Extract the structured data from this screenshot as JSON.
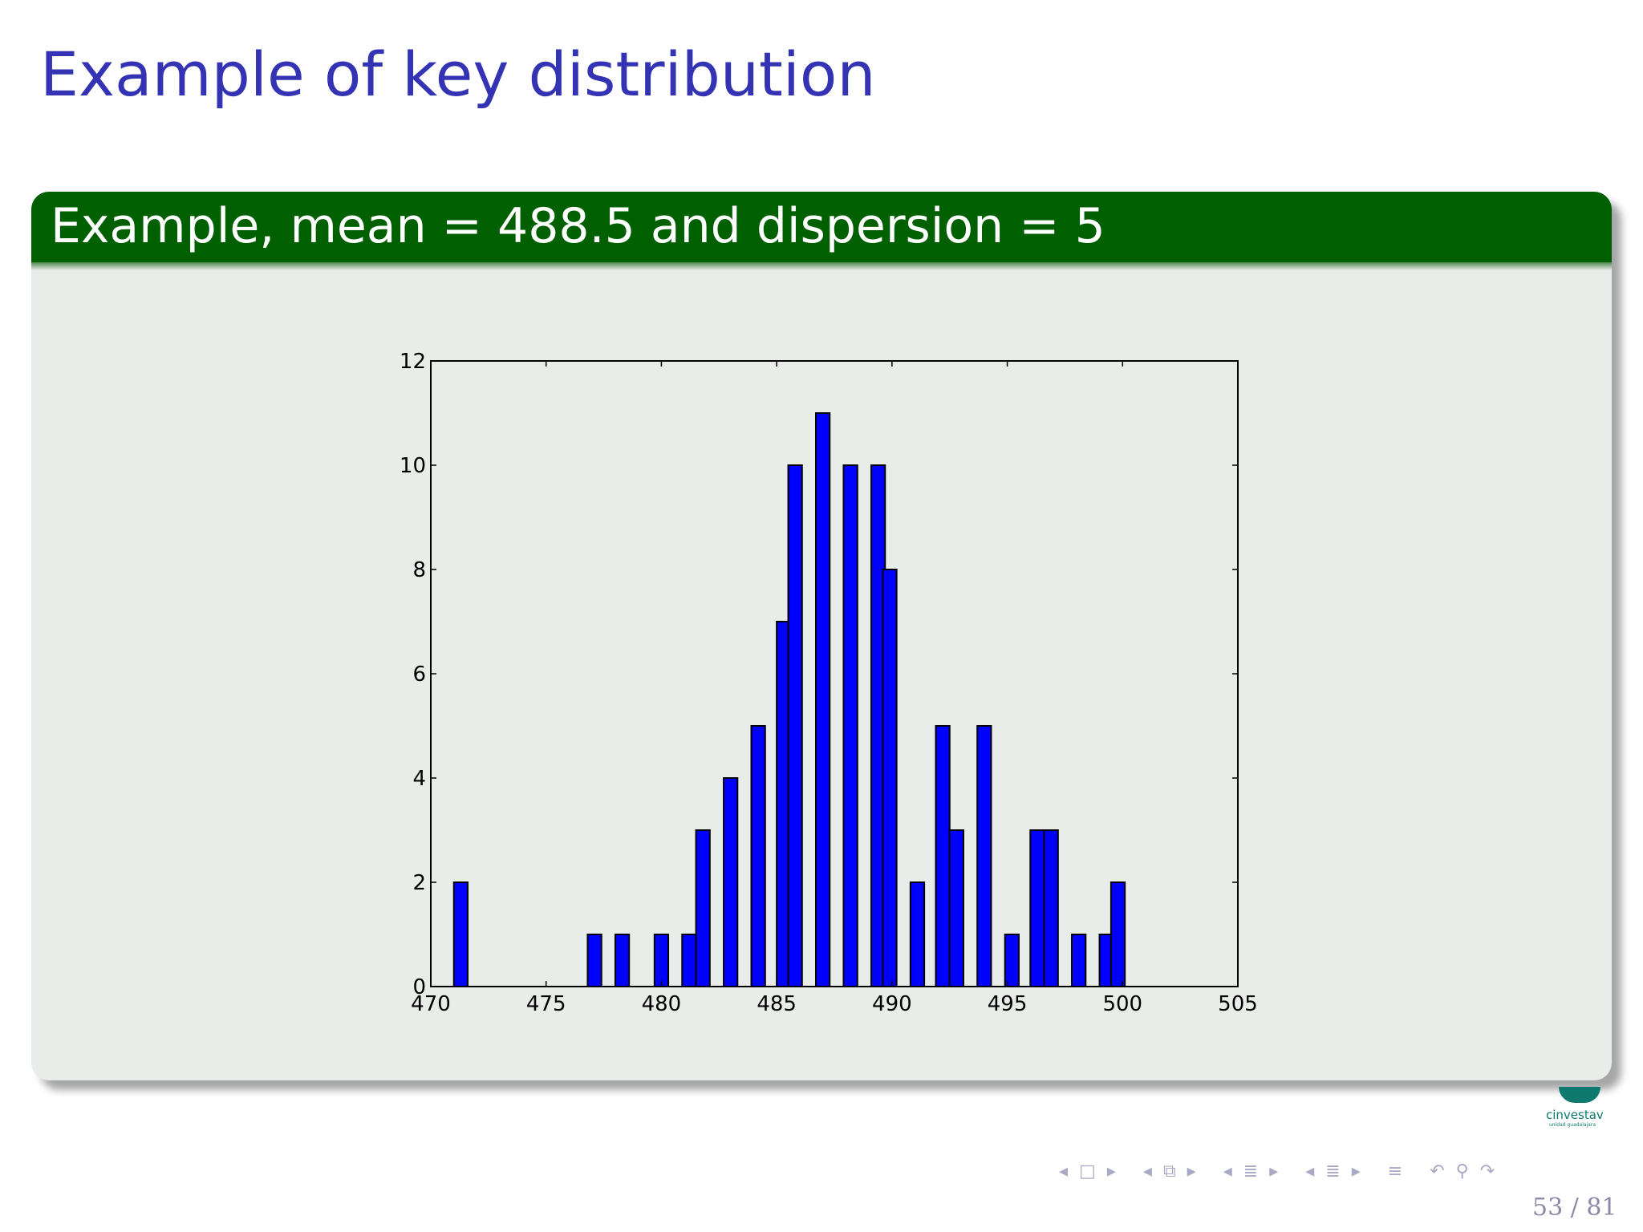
{
  "slide": {
    "title": "Example of key distribution",
    "block_title": "Example, mean = 488.5 and dispersion = 5",
    "page_number": "53 / 81"
  },
  "logo": {
    "text": "cinvestav",
    "subtext": "unidad guadalajara"
  },
  "nav": {
    "icons": [
      "prev-arrow-icon",
      "frame-icon",
      "next-arrow-icon",
      "prev-arrow-icon",
      "slides-icon",
      "next-arrow-icon",
      "prev-arrow-icon",
      "section-icon",
      "next-arrow-icon",
      "prev-arrow-icon",
      "subsection-icon",
      "next-arrow-icon",
      "align-icon",
      "undo-icon",
      "search-icon",
      "redo-icon"
    ]
  },
  "colors": {
    "title": "#3333b3",
    "block_header": "#006000",
    "block_body": "#e8ede9",
    "bar_fill": "#0000ff",
    "bar_edge": "#000000"
  },
  "chart_data": {
    "type": "bar",
    "title": "",
    "xlabel": "",
    "ylabel": "",
    "xlim": [
      470,
      505
    ],
    "ylim": [
      0,
      12
    ],
    "xticks": [
      470,
      475,
      480,
      485,
      490,
      495,
      500,
      505
    ],
    "yticks": [
      0,
      2,
      4,
      6,
      8,
      10,
      12
    ],
    "bin_width": 0.6,
    "grid": false,
    "legend": "none",
    "bars": [
      {
        "x": 471.0,
        "height": 2
      },
      {
        "x": 476.8,
        "height": 1
      },
      {
        "x": 478.0,
        "height": 1
      },
      {
        "x": 479.7,
        "height": 1
      },
      {
        "x": 480.9,
        "height": 1
      },
      {
        "x": 481.5,
        "height": 3
      },
      {
        "x": 482.7,
        "height": 4
      },
      {
        "x": 483.9,
        "height": 5
      },
      {
        "x": 485.0,
        "height": 7
      },
      {
        "x": 485.5,
        "height": 10
      },
      {
        "x": 486.7,
        "height": 11
      },
      {
        "x": 487.9,
        "height": 10
      },
      {
        "x": 489.1,
        "height": 10
      },
      {
        "x": 489.6,
        "height": 8
      },
      {
        "x": 490.8,
        "height": 2
      },
      {
        "x": 491.9,
        "height": 5
      },
      {
        "x": 492.5,
        "height": 3
      },
      {
        "x": 493.7,
        "height": 5
      },
      {
        "x": 494.9,
        "height": 1
      },
      {
        "x": 496.0,
        "height": 3
      },
      {
        "x": 496.6,
        "height": 3
      },
      {
        "x": 497.8,
        "height": 1
      },
      {
        "x": 499.0,
        "height": 1
      },
      {
        "x": 499.5,
        "height": 2
      }
    ]
  }
}
